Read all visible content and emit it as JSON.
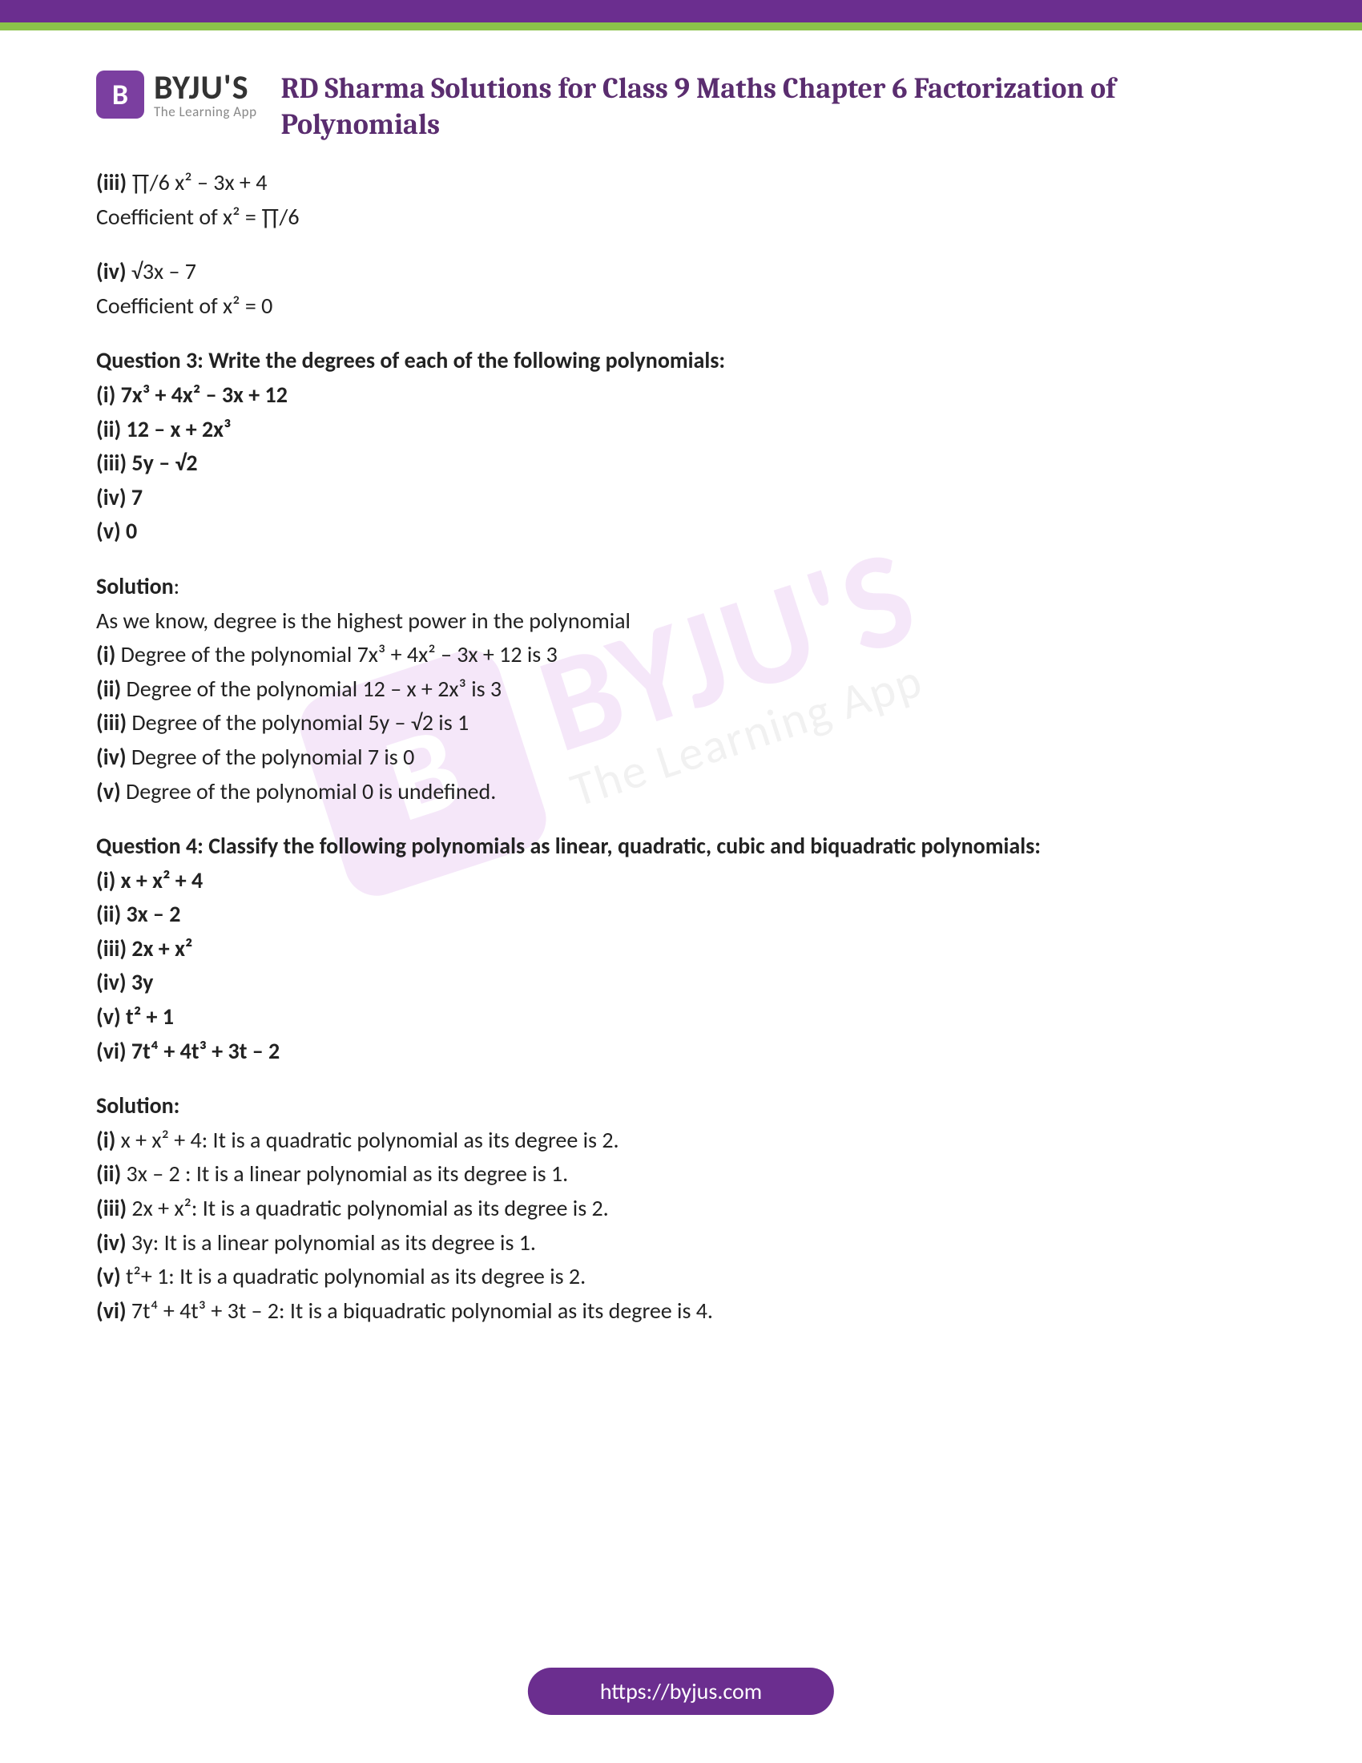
{
  "colors": {
    "header_purple": "#6b2e8f",
    "header_green": "#8bc34a",
    "title_color": "#5a2d6f",
    "text_color": "#222222",
    "logo_purple": "#7b3fa0",
    "logo_gray": "#888888",
    "watermark_purple": "#c97fe0"
  },
  "logo": {
    "badge_letter": "B",
    "name": "BYJU'S",
    "tagline": "The Learning App"
  },
  "page_title": "RD Sharma Solutions for Class 9 Maths Chapter 6 Factorization of Polynomials",
  "prev": {
    "iii_label": "(iii)",
    "iii_expr": "∏/6 x² – 3x + 4",
    "iii_ans": "Coefficient of x² = ∏/6",
    "iv_label": "(iv)",
    "iv_expr": "√3x – 7",
    "iv_ans": "Coefficient of x² = 0"
  },
  "q3": {
    "prompt": "Question 3: Write the degrees of each of the following polynomials:",
    "items": {
      "i": "(i) 7x³ + 4x² – 3x + 12",
      "ii": "(ii) 12 – x + 2x³",
      "iii": "(iii) 5y – √2",
      "iv": "(iv) 7",
      "v": "(v) 0"
    },
    "solution_label": "Solution",
    "intro": "As we know, degree is the highest power in the polynomial",
    "answers": {
      "i_l": "(i)",
      "i_t": "Degree of the polynomial 7x³ + 4x² – 3x + 12 is 3",
      "ii_l": "(ii)",
      "ii_t": "Degree of the polynomial 12 – x + 2x³ is 3",
      "iii_l": "(iii)",
      "iii_t": "Degree of the polynomial 5y – √2  is 1",
      "iv_l": "(iv)",
      "iv_t": "Degree of the polynomial 7 is 0",
      "v_l": "(v)",
      "v_t": "Degree of the polynomial 0 is undefined."
    }
  },
  "q4": {
    "prompt": "Question 4: Classify the following polynomials as linear, quadratic, cubic and biquadratic polynomials:",
    "items": {
      "i": "(i) x + x² + 4",
      "ii": "(ii) 3x – 2",
      "iii": "(iii) 2x + x²",
      "iv": "(iv) 3y",
      "v": "(v) t² + 1",
      "vi": "(vi) 7t⁴ + 4t³ + 3t – 2"
    },
    "solution_label": "Solution:",
    "answers": {
      "i_l": "(i)",
      "i_t": "x + x² + 4: It is a quadratic polynomial as its degree is 2.",
      "ii_l": "(ii)",
      "ii_t": "3x – 2 : It is a linear polynomial as its degree is 1.",
      "iii_l": "(iii)",
      "iii_t": "2x + x²: It is a quadratic polynomial as its degree is 2.",
      "iv_l": "(iv)",
      "iv_t": "3y:  It is a linear polynomial as its degree is 1.",
      "v_l": "(v)",
      "v_t": "t²+ 1: It is a quadratic polynomial as its degree is 2.",
      "vi_l": "(vi)",
      "vi_t": "7t⁴ + 4t³ + 3t – 2: It is a biquadratic polynomial as its degree is 4."
    }
  },
  "footer": {
    "url": "https://byjus.com"
  },
  "watermark": {
    "badge_letter": "B",
    "name": "BYJU'S",
    "tagline": "The Learning App"
  }
}
